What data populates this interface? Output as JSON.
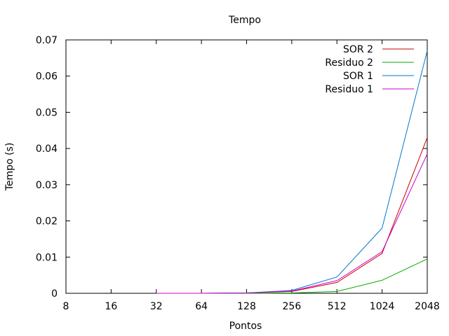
{
  "chart_data": {
    "type": "line",
    "title": "Tempo",
    "xlabel": "Pontos",
    "ylabel": "Tempo (s)",
    "x_scale": "log2",
    "xlim": [
      8,
      2048
    ],
    "ylim": [
      0,
      0.07
    ],
    "x_ticks": [
      "8",
      "16",
      "32",
      "64",
      "128",
      "256",
      "512",
      "1024",
      "2048"
    ],
    "y_ticks": [
      "0",
      "0.01",
      "0.02",
      "0.03",
      "0.04",
      "0.05",
      "0.06",
      "0.07"
    ],
    "grid": false,
    "legend_position": "top-right",
    "x": [
      32,
      64,
      128,
      256,
      512,
      1024,
      2048
    ],
    "series": [
      {
        "name": "SOR 2",
        "color": "#cc0000",
        "values": [
          0.0,
          0.0,
          0.0001,
          0.0005,
          0.003,
          0.011,
          0.043
        ]
      },
      {
        "name": "Residuo 2",
        "color": "#00aa00",
        "values": [
          0.0,
          0.0,
          0.0,
          0.0001,
          0.0005,
          0.0036,
          0.0095
        ]
      },
      {
        "name": "SOR 1",
        "color": "#0077cc",
        "values": [
          0.0,
          0.0,
          0.0001,
          0.0008,
          0.0045,
          0.018,
          0.067
        ]
      },
      {
        "name": "Residuo 1",
        "color": "#cc00cc",
        "values": [
          0.0,
          0.0,
          0.0001,
          0.0006,
          0.0035,
          0.0115,
          0.0385
        ]
      }
    ]
  }
}
